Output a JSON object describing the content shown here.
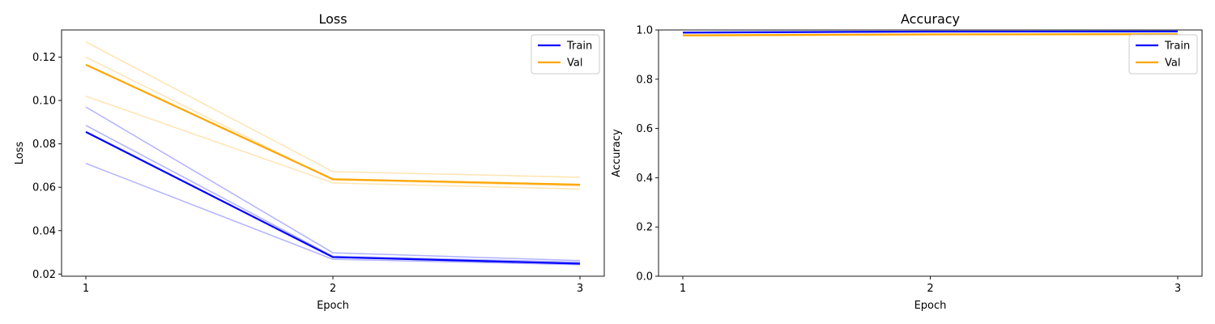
{
  "chart_data": [
    {
      "type": "line",
      "title": "Loss",
      "xlabel": "Epoch",
      "ylabel": "Loss",
      "x": [
        1,
        2,
        3
      ],
      "xticks": [
        "1",
        "2",
        "3"
      ],
      "ylim": [
        0.019,
        0.1325
      ],
      "yticks": [
        0.02,
        0.04,
        0.06,
        0.08,
        0.1,
        0.12
      ],
      "ytick_labels": [
        "0.02",
        "0.04",
        "0.06",
        "0.08",
        "0.10",
        "0.12"
      ],
      "grid": false,
      "legend_position": "top-right",
      "series": [
        {
          "name": "Train",
          "color": "#0000ff",
          "values": [
            0.0855,
            0.0278,
            0.0248
          ]
        },
        {
          "name": "Val",
          "color": "#ffa500",
          "values": [
            0.1165,
            0.0637,
            0.0612
          ]
        }
      ],
      "faint_series": [
        {
          "color": "#0000ff",
          "values": [
            0.097,
            0.0298,
            0.0262
          ]
        },
        {
          "color": "#0000ff",
          "values": [
            0.0885,
            0.0282,
            0.0255
          ]
        },
        {
          "color": "#0000ff",
          "values": [
            0.071,
            0.0268,
            0.0243
          ]
        },
        {
          "color": "#ffa500",
          "values": [
            0.127,
            0.0672,
            0.0646
          ]
        },
        {
          "color": "#ffa500",
          "values": [
            0.12,
            0.0634,
            0.0606
          ]
        },
        {
          "color": "#ffa500",
          "values": [
            0.102,
            0.062,
            0.0592
          ]
        }
      ]
    },
    {
      "type": "line",
      "title": "Accuracy",
      "xlabel": "Epoch",
      "ylabel": "Accuracy",
      "x": [
        1,
        2,
        3
      ],
      "xticks": [
        "1",
        "2",
        "3"
      ],
      "ylim": [
        0.0,
        1.0
      ],
      "yticks": [
        0.0,
        0.2,
        0.4,
        0.6,
        0.8,
        1.0
      ],
      "ytick_labels": [
        "0.0",
        "0.2",
        "0.4",
        "0.6",
        "0.8",
        "1.0"
      ],
      "grid": false,
      "legend_position": "top-right",
      "series": [
        {
          "name": "Train",
          "color": "#0000ff",
          "values": [
            0.9895,
            0.9935,
            0.994
          ]
        },
        {
          "name": "Val",
          "color": "#ffa500",
          "values": [
            0.978,
            0.982,
            0.983
          ]
        }
      ],
      "faint_series": [
        {
          "color": "#0000ff",
          "values": [
            0.987,
            0.993,
            0.9935
          ]
        },
        {
          "color": "#0000ff",
          "values": [
            0.991,
            0.994,
            0.9945
          ]
        },
        {
          "color": "#ffa500",
          "values": [
            0.976,
            0.981,
            0.982
          ]
        },
        {
          "color": "#ffa500",
          "values": [
            0.98,
            0.983,
            0.984
          ]
        }
      ]
    }
  ]
}
